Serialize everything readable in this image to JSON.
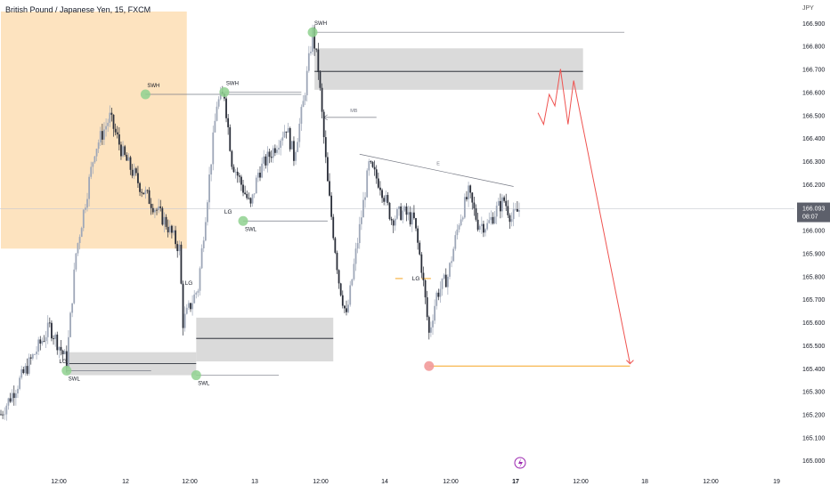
{
  "title": "British Pound / Japanese Yen, 15, FXCM",
  "currency": "JPY",
  "colors": {
    "candle_up": "#9ea7b8",
    "candle_down": "#2a2e39",
    "zone": "#d4d4d4",
    "zone_line": "#131722",
    "session": "#fde3bf",
    "swing": "#8fd18f",
    "target": "#f29a9a",
    "orange": "#f5a623",
    "projection": "#ef5350",
    "price_badge": "#5d606b",
    "lightning": "#9c27b0"
  },
  "chart_data": {
    "type": "candlestick",
    "title": "British Pound / Japanese Yen, 15, FXCM",
    "ylim": [
      164.97,
      167.0
    ],
    "x_ticks": [
      "12:00",
      "12",
      "12:00",
      "13",
      "12:00",
      "14",
      "12:00",
      "17",
      "12:00",
      "18",
      "12:00",
      "19"
    ],
    "y_ticks": [
      "166.900",
      "166.800",
      "166.700",
      "166.600",
      "166.500",
      "166.400",
      "166.300",
      "166.200",
      "166.100",
      "166.000",
      "165.900",
      "165.800",
      "165.700",
      "165.600",
      "165.500",
      "165.400",
      "165.300",
      "165.200",
      "165.100",
      "165.000"
    ],
    "current_price": "166.093",
    "countdown": "08:07",
    "key_points": [
      {
        "t": 0,
        "price": 165.2
      },
      {
        "t": 17,
        "price": 165.45
      },
      {
        "t": 26,
        "price": 165.58
      },
      {
        "t": 35,
        "price": 165.43
      },
      {
        "t": 40,
        "price": 165.9
      },
      {
        "t": 50,
        "price": 166.35
      },
      {
        "t": 58,
        "price": 166.49
      },
      {
        "t": 65,
        "price": 166.33
      },
      {
        "t": 75,
        "price": 166.18
      },
      {
        "t": 88,
        "price": 166.03
      },
      {
        "t": 95,
        "price": 165.92
      },
      {
        "t": 97,
        "price": 165.6
      },
      {
        "t": 105,
        "price": 165.75
      },
      {
        "t": 110,
        "price": 166.15
      },
      {
        "t": 115,
        "price": 166.55
      },
      {
        "t": 119,
        "price": 166.59
      },
      {
        "t": 123,
        "price": 166.3
      },
      {
        "t": 128,
        "price": 166.2
      },
      {
        "t": 133,
        "price": 166.1
      },
      {
        "t": 137,
        "price": 166.25
      },
      {
        "t": 145,
        "price": 166.35
      },
      {
        "t": 152,
        "price": 166.45
      },
      {
        "t": 156,
        "price": 166.32
      },
      {
        "t": 161,
        "price": 166.55
      },
      {
        "t": 166,
        "price": 166.86
      },
      {
        "t": 169,
        "price": 166.7
      },
      {
        "t": 174,
        "price": 166.2
      },
      {
        "t": 180,
        "price": 165.78
      },
      {
        "t": 184,
        "price": 165.62
      },
      {
        "t": 189,
        "price": 165.9
      },
      {
        "t": 196,
        "price": 166.28
      },
      {
        "t": 202,
        "price": 166.2
      },
      {
        "t": 208,
        "price": 166.05
      },
      {
        "t": 214,
        "price": 166.08
      },
      {
        "t": 220,
        "price": 166.04
      },
      {
        "t": 224,
        "price": 165.84
      },
      {
        "t": 228,
        "price": 165.55
      },
      {
        "t": 232,
        "price": 165.72
      },
      {
        "t": 238,
        "price": 165.8
      },
      {
        "t": 244,
        "price": 166.04
      },
      {
        "t": 249,
        "price": 166.16
      },
      {
        "t": 254,
        "price": 166.03
      },
      {
        "t": 259,
        "price": 166.02
      },
      {
        "t": 264,
        "price": 166.09
      },
      {
        "t": 268,
        "price": 166.13
      },
      {
        "t": 272,
        "price": 166.05
      },
      {
        "t": 276,
        "price": 166.09
      }
    ],
    "zones": [
      {
        "name": "supply-zone",
        "t_start": 167,
        "t_end": 310,
        "top": 166.79,
        "bottom": 166.61,
        "mid": 166.69
      },
      {
        "name": "demand-zone-1",
        "t_start": 35,
        "t_end": 104,
        "top": 165.47,
        "bottom": 165.37,
        "mid": 165.42
      },
      {
        "name": "demand-zone-2",
        "t_start": 104,
        "t_end": 177,
        "top": 165.62,
        "bottom": 165.43,
        "mid": 165.53
      }
    ],
    "session_box": {
      "t_start": 0,
      "t_end": 99,
      "top": 166.95,
      "bottom": 165.92
    },
    "swing_points": [
      {
        "label": "SWH",
        "t": 77,
        "price": 166.59,
        "line_to_t": 160
      },
      {
        "label": "SWH",
        "t": 119,
        "price": 166.6,
        "line_to_t": 160
      },
      {
        "label": "SWH",
        "t": 166,
        "price": 166.86,
        "line_to_t": 332
      },
      {
        "label": "SWL",
        "t": 35,
        "price": 165.39,
        "line_to_t": 80
      },
      {
        "label": "SWL",
        "t": 104,
        "price": 165.37,
        "line_to_t": 148
      },
      {
        "label": "SWL",
        "t": 129,
        "price": 166.04,
        "line_to_t": 174
      }
    ],
    "labels": [
      {
        "text": "LG",
        "t": 31,
        "price": 165.43
      },
      {
        "text": "LG",
        "t": 98,
        "price": 165.77
      },
      {
        "text": "LG",
        "t": 119,
        "price": 166.08
      },
      {
        "text": "LG",
        "t": 219,
        "price": 165.79
      },
      {
        "text": "MB",
        "t": 186,
        "price": 166.52
      },
      {
        "text": "E",
        "t": 232,
        "price": 166.29
      }
    ],
    "target_price": 165.41,
    "mb_level": 166.49,
    "projection": [
      {
        "t": 286,
        "price": 166.51
      },
      {
        "t": 289,
        "price": 166.46
      },
      {
        "t": 292,
        "price": 166.59
      },
      {
        "t": 295,
        "price": 166.54
      },
      {
        "t": 298,
        "price": 166.7
      },
      {
        "t": 302,
        "price": 166.46
      },
      {
        "t": 305,
        "price": 166.65
      },
      {
        "t": 335,
        "price": 165.42
      }
    ]
  }
}
